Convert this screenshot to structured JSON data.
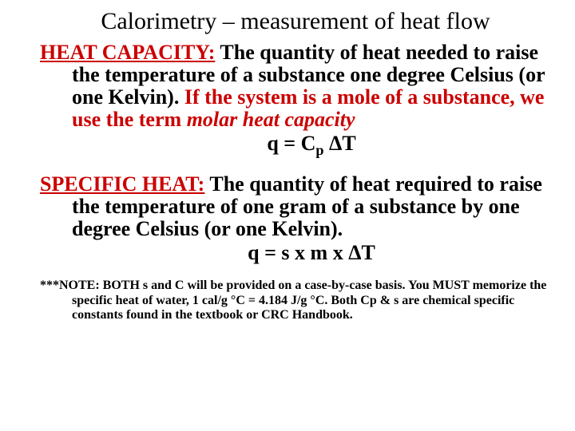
{
  "title": "Calorimetry – measurement of heat flow",
  "section1": {
    "term": "HEAT CAPACITY:",
    "def_part1": " The quantity of heat needed to raise the temperature of a substance one degree Celsius (or one Kelvin). ",
    "emph_lead": "If the system is a mole of a substance, we use the term ",
    "emph_italic": "molar heat capacity",
    "formula_lhs": "q = C",
    "formula_sub": "p",
    "formula_rhs": " ΔT"
  },
  "section2": {
    "term": "SPECIFIC HEAT:",
    "def": " The quantity of heat required to raise the temperature of one gram of a substance by one degree Celsius (or one Kelvin).",
    "formula": "q = s x m x ΔT"
  },
  "note": {
    "prefix": "***NOTE:",
    "text": " BOTH s and C will be provided on a case-by-case basis.  You MUST memorize the specific heat of water, 1 cal/g °C = 4.184 J/g °C.  Both Cp & s are chemical specific constants found in the textbook or CRC Handbook."
  },
  "colors": {
    "term_color": "#cc0000",
    "text_color": "#000000",
    "bg": "#ffffff"
  }
}
